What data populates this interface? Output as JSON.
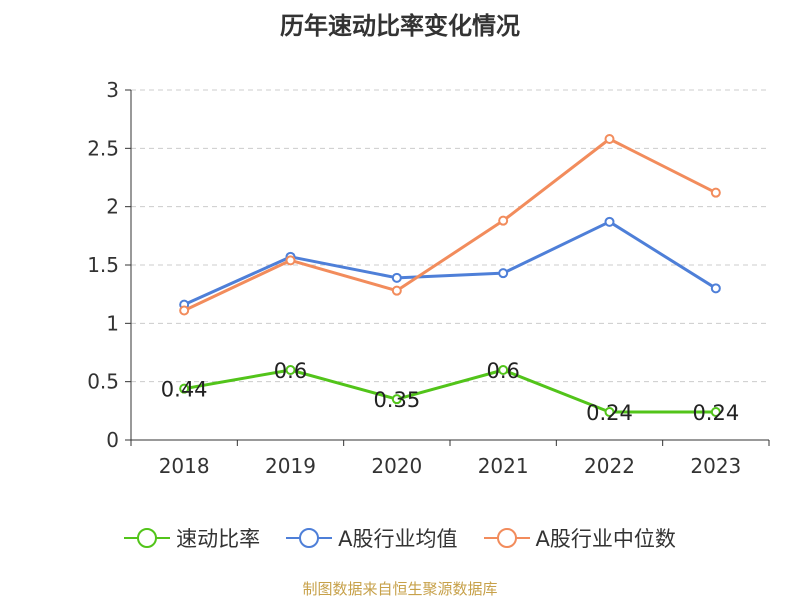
{
  "chart_data": {
    "type": "line",
    "title": "历年速动比率变化情况",
    "categories": [
      "2018",
      "2019",
      "2020",
      "2021",
      "2022",
      "2023"
    ],
    "ylim": [
      0,
      3
    ],
    "yticks": [
      "0",
      "0.5",
      "1",
      "1.5",
      "2",
      "2.5",
      "3"
    ],
    "grid": true,
    "legend_position": "bottom",
    "series": [
      {
        "name": "速动比率",
        "color": "#52c41a",
        "values": [
          0.44,
          0.6,
          0.35,
          0.6,
          0.24,
          0.24
        ],
        "labels": [
          "0.44",
          "0.6",
          "0.35",
          "0.6",
          "0.24",
          "0.24"
        ]
      },
      {
        "name": "A股行业均值",
        "color": "#4e7fd8",
        "values": [
          1.16,
          1.57,
          1.39,
          1.43,
          1.87,
          1.3
        ]
      },
      {
        "name": "A股行业中位数",
        "color": "#f28c5c",
        "values": [
          1.11,
          1.54,
          1.28,
          1.88,
          2.58,
          2.12
        ]
      }
    ]
  },
  "source": "制图数据来自恒生聚源数据库"
}
